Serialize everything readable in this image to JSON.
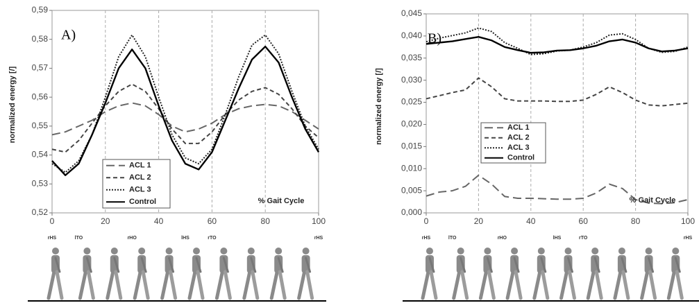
{
  "chart_data": [
    {
      "type": "line",
      "panel_label": "A)",
      "y_label": "normalized energy [/]",
      "x_annotation": "% Gait Cycle",
      "x": [
        0,
        5,
        10,
        15,
        20,
        25,
        30,
        35,
        40,
        45,
        50,
        55,
        60,
        65,
        70,
        75,
        80,
        85,
        90,
        95,
        100
      ],
      "xlim": [
        0,
        100
      ],
      "xticks": [
        0,
        20,
        40,
        60,
        80,
        100
      ],
      "ylim": [
        0.52,
        0.59
      ],
      "yticks": [
        {
          "value": 0.52,
          "label": "0,52"
        },
        {
          "value": 0.53,
          "label": "0,53"
        },
        {
          "value": 0.54,
          "label": "0,54"
        },
        {
          "value": 0.55,
          "label": "0,55"
        },
        {
          "value": 0.56,
          "label": "0,56"
        },
        {
          "value": 0.57,
          "label": "0,57"
        },
        {
          "value": 0.58,
          "label": "0,58"
        },
        {
          "value": 0.59,
          "label": "0,59"
        }
      ],
      "grid": "x",
      "legend": "lower left",
      "gait_events": [
        {
          "x": 0,
          "label": "rHS"
        },
        {
          "x": 10,
          "label": "lTO"
        },
        {
          "x": 30,
          "label": "rHO"
        },
        {
          "x": 50,
          "label": "lHS"
        },
        {
          "x": 60,
          "label": "rTO"
        },
        {
          "x": 100,
          "label": "rHS"
        }
      ],
      "series": [
        {
          "name": "ACL 1",
          "color": "#666666",
          "dash": "long",
          "values": [
            0.547,
            0.548,
            0.55,
            0.552,
            0.555,
            0.557,
            0.558,
            0.557,
            0.554,
            0.55,
            0.548,
            0.549,
            0.551,
            0.554,
            0.556,
            0.557,
            0.5575,
            0.557,
            0.555,
            0.552,
            0.549
          ]
        },
        {
          "name": "ACL 2",
          "color": "#444444",
          "dash": "short",
          "values": [
            0.542,
            0.541,
            0.545,
            0.551,
            0.557,
            0.562,
            0.5645,
            0.562,
            0.556,
            0.549,
            0.544,
            0.544,
            0.548,
            0.554,
            0.559,
            0.562,
            0.5633,
            0.561,
            0.556,
            0.55,
            0.546
          ]
        },
        {
          "name": "ACL 3",
          "color": "#222222",
          "dash": "dot",
          "values": [
            0.537,
            0.534,
            0.538,
            0.547,
            0.56,
            0.574,
            0.5815,
            0.574,
            0.56,
            0.547,
            0.539,
            0.537,
            0.542,
            0.554,
            0.567,
            0.578,
            0.5815,
            0.575,
            0.562,
            0.55,
            0.542
          ]
        },
        {
          "name": "Control",
          "color": "#000000",
          "dash": "solid",
          "values": [
            0.538,
            0.533,
            0.537,
            0.547,
            0.558,
            0.57,
            0.5765,
            0.57,
            0.557,
            0.545,
            0.537,
            0.535,
            0.541,
            0.552,
            0.563,
            0.573,
            0.5775,
            0.572,
            0.56,
            0.549,
            0.541
          ]
        }
      ]
    },
    {
      "type": "line",
      "panel_label": "B)",
      "y_label": "normalized energy [/]",
      "x_annotation": "% Gait Cycle",
      "x": [
        0,
        5,
        10,
        15,
        20,
        25,
        30,
        35,
        40,
        45,
        50,
        55,
        60,
        65,
        70,
        75,
        80,
        85,
        90,
        95,
        100
      ],
      "xlim": [
        0,
        100
      ],
      "xticks": [
        0,
        20,
        40,
        60,
        80,
        100
      ],
      "ylim": [
        0,
        0.045
      ],
      "yticks": [
        {
          "value": 0,
          "label": "0,000"
        },
        {
          "value": 0.005,
          "label": "0,005"
        },
        {
          "value": 0.01,
          "label": "0,010"
        },
        {
          "value": 0.015,
          "label": "0,015"
        },
        {
          "value": 0.02,
          "label": "0,020"
        },
        {
          "value": 0.025,
          "label": "0,025"
        },
        {
          "value": 0.03,
          "label": "0,030"
        },
        {
          "value": 0.035,
          "label": "0,035"
        },
        {
          "value": 0.04,
          "label": "0,040"
        },
        {
          "value": 0.045,
          "label": "0,045"
        }
      ],
      "grid": "x",
      "legend": "middle left",
      "gait_events": [
        {
          "x": 0,
          "label": "rHS"
        },
        {
          "x": 10,
          "label": "lTO"
        },
        {
          "x": 29,
          "label": "rHO"
        },
        {
          "x": 50,
          "label": "lHS"
        },
        {
          "x": 60,
          "label": "rTO"
        },
        {
          "x": 100,
          "label": "rHS"
        }
      ],
      "series": [
        {
          "name": "ACL 1",
          "color": "#666666",
          "dash": "long",
          "values": [
            0.0038,
            0.0047,
            0.005,
            0.006,
            0.0085,
            0.0065,
            0.0037,
            0.0033,
            0.0033,
            0.0032,
            0.0031,
            0.0031,
            0.0033,
            0.0045,
            0.0065,
            0.0055,
            0.003,
            0.0022,
            0.0021,
            0.0023,
            0.003
          ]
        },
        {
          "name": "ACL 2",
          "color": "#444444",
          "dash": "short",
          "values": [
            0.0258,
            0.0265,
            0.0272,
            0.0278,
            0.0305,
            0.0285,
            0.0258,
            0.0253,
            0.0253,
            0.0253,
            0.0252,
            0.0252,
            0.0255,
            0.0268,
            0.0285,
            0.0272,
            0.0255,
            0.0244,
            0.0242,
            0.0245,
            0.0248
          ]
        },
        {
          "name": "ACL 3",
          "color": "#222222",
          "dash": "dot",
          "values": [
            0.0387,
            0.0395,
            0.0401,
            0.0407,
            0.0418,
            0.041,
            0.0385,
            0.0372,
            0.0358,
            0.036,
            0.0366,
            0.0368,
            0.0375,
            0.0385,
            0.0402,
            0.0405,
            0.0392,
            0.0372,
            0.0363,
            0.0365,
            0.0375
          ]
        },
        {
          "name": "Control",
          "color": "#000000",
          "dash": "solid",
          "values": [
            0.0382,
            0.0385,
            0.0388,
            0.0393,
            0.0398,
            0.039,
            0.0375,
            0.0368,
            0.0362,
            0.0363,
            0.0367,
            0.0368,
            0.0372,
            0.0378,
            0.0388,
            0.0392,
            0.0385,
            0.0372,
            0.0365,
            0.0367,
            0.0372
          ]
        }
      ]
    }
  ]
}
